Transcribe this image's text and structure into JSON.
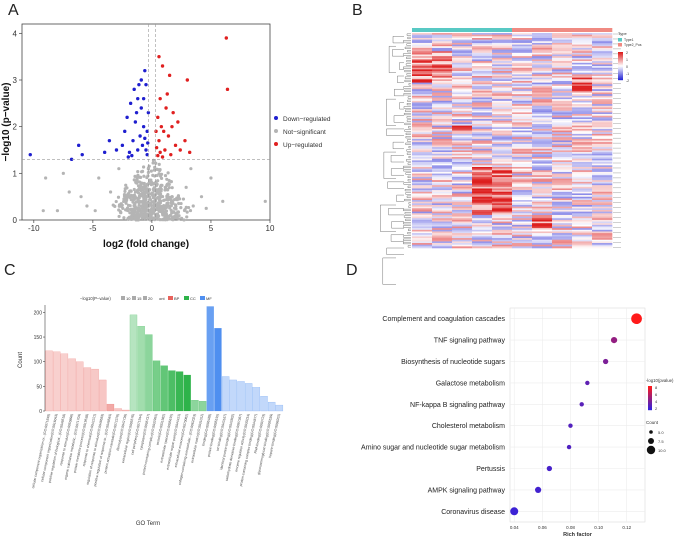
{
  "panels": {
    "a": "A",
    "b": "B",
    "c": "C",
    "d": "D"
  },
  "chart_data": [
    {
      "type": "scatter",
      "panel": "A",
      "xlabel": "log2 (fold change)",
      "ylabel": "−log10 (p−value)",
      "xlim": [
        -11,
        10
      ],
      "ylim": [
        0,
        4.2
      ],
      "xticks": [
        "-10",
        "-5",
        "0",
        "5",
        "10"
      ],
      "yticks": [
        "0",
        "1",
        "2",
        "3",
        "4"
      ],
      "threshold_y": 1.3,
      "threshold_x": [
        -0.3,
        0.3
      ],
      "legend": [
        {
          "label": "Down−regulated",
          "color": "#1f1fcf"
        },
        {
          "label": "Not−significant",
          "color": "#b4b4b4"
        },
        {
          "label": "Up−regulated",
          "color": "#e02020"
        }
      ],
      "down_points": [
        [
          -0.6,
          3.2
        ],
        [
          -1.2,
          2.6
        ],
        [
          -0.9,
          2.4
        ],
        [
          -1.8,
          2.5
        ],
        [
          -0.5,
          2.9
        ],
        [
          -1.4,
          2.1
        ],
        [
          -0.7,
          2.0
        ],
        [
          -2.1,
          2.2
        ],
        [
          -1.0,
          1.8
        ],
        [
          -0.4,
          1.9
        ],
        [
          -1.6,
          1.7
        ],
        [
          -2.5,
          1.6
        ],
        [
          -0.8,
          1.6
        ],
        [
          -1.2,
          1.5
        ],
        [
          -0.5,
          1.5
        ],
        [
          -1.9,
          1.45
        ],
        [
          -3.0,
          1.5
        ],
        [
          -0.6,
          1.75
        ],
        [
          -1.1,
          2.9
        ],
        [
          -0.3,
          2.3
        ],
        [
          -0.9,
          3.0
        ],
        [
          -1.5,
          2.8
        ],
        [
          -2.3,
          1.9
        ],
        [
          -0.4,
          1.4
        ],
        [
          -1.7,
          1.38
        ],
        [
          -6.2,
          1.6
        ],
        [
          -5.9,
          1.4
        ],
        [
          -6.8,
          1.3
        ],
        [
          -10.3,
          1.4
        ],
        [
          -3.6,
          1.7
        ],
        [
          -4.0,
          1.45
        ],
        [
          -1.3,
          2.3
        ],
        [
          -0.7,
          2.6
        ],
        [
          -2.0,
          1.35
        ],
        [
          -0.35,
          1.65
        ]
      ],
      "up_points": [
        [
          6.3,
          3.9
        ],
        [
          6.4,
          2.8
        ],
        [
          0.9,
          3.3
        ],
        [
          1.5,
          3.1
        ],
        [
          0.7,
          2.6
        ],
        [
          1.2,
          2.4
        ],
        [
          0.5,
          2.2
        ],
        [
          0.8,
          2.0
        ],
        [
          1.8,
          2.3
        ],
        [
          1.0,
          1.9
        ],
        [
          0.6,
          1.7
        ],
        [
          1.4,
          1.8
        ],
        [
          0.4,
          1.55
        ],
        [
          1.1,
          1.5
        ],
        [
          2.0,
          1.6
        ],
        [
          0.7,
          1.45
        ],
        [
          1.6,
          1.4
        ],
        [
          2.4,
          1.5
        ],
        [
          0.5,
          1.38
        ],
        [
          3.2,
          1.45
        ],
        [
          1.3,
          2.7
        ],
        [
          0.9,
          1.35
        ],
        [
          2.8,
          1.7
        ],
        [
          1.7,
          2.0
        ],
        [
          0.35,
          1.9
        ],
        [
          3.0,
          3.0
        ],
        [
          2.2,
          2.1
        ],
        [
          0.6,
          3.5
        ]
      ],
      "ns_points": [
        [
          -8.0,
          0.2
        ],
        [
          -6.0,
          0.5
        ],
        [
          -4.5,
          0.9
        ],
        [
          -5.5,
          0.3
        ],
        [
          -3.5,
          0.6
        ],
        [
          -7.0,
          0.6
        ],
        [
          -2.8,
          1.1
        ],
        [
          -2.6,
          0.35
        ],
        [
          -4.8,
          0.2
        ],
        [
          -9.0,
          0.9
        ],
        [
          3.5,
          0.3
        ],
        [
          4.2,
          0.5
        ],
        [
          5.0,
          0.9
        ],
        [
          3.3,
          1.1
        ],
        [
          6.0,
          0.4
        ],
        [
          9.6,
          0.4
        ],
        [
          4.6,
          0.25
        ],
        [
          2.9,
          0.7
        ],
        [
          -7.5,
          1.0
        ],
        [
          -9.2,
          0.2
        ]
      ]
    },
    {
      "type": "heatmap",
      "panel": "B",
      "columns": 10,
      "column_groups": [
        "group1",
        "group1",
        "group1",
        "group1",
        "group1",
        "group2",
        "group2",
        "group2",
        "group2",
        "group2"
      ],
      "group_colors": [
        "#58c9c4",
        "#f08a82"
      ],
      "legend_title": "Type",
      "legend_items": [
        "Type1",
        "Type2_Pos"
      ],
      "color_scale": {
        "min": -2,
        "max": 2,
        "low": "#2a2ad6",
        "mid": "#ffffff",
        "high": "#dd1f1f",
        "ticks": [
          "2",
          "1",
          "0",
          "-1",
          "-2"
        ]
      }
    },
    {
      "type": "bar",
      "panel": "C",
      "title": "−log10(P−value)",
      "xlabel": "GO Term",
      "ylabel": "Count",
      "ylim": [
        0,
        215
      ],
      "yticks": [
        "0",
        "50",
        "100",
        "150",
        "200"
      ],
      "size_legend": [
        "10",
        "15",
        "20"
      ],
      "ont_legend_title": "ont",
      "ont_legend": [
        {
          "label": "BP",
          "color": "#e8625c"
        },
        {
          "label": "CC",
          "color": "#2eb34a"
        },
        {
          "label": "MF",
          "color": "#4f8ff0"
        }
      ],
      "categories": [
        {
          "term": "cellular component organization or...(GO:0071840)",
          "count": 122,
          "ont": "BP",
          "alpha": 0.3
        },
        {
          "term": "cellular component organization(GO:0016043)",
          "count": 120,
          "ont": "BP",
          "alpha": 0.3
        },
        {
          "term": "positive regulation of biological...(GO:0048518)",
          "count": 116,
          "ont": "BP",
          "alpha": 0.3
        },
        {
          "term": "response to stimulus(GO:0050896)",
          "count": 106,
          "ont": "BP",
          "alpha": 0.32
        },
        {
          "term": "organic substance metabolic...(GO:0071704)",
          "count": 100,
          "ont": "BP",
          "alpha": 0.32
        },
        {
          "term": "protein metabolic process(GO:0019538)",
          "count": 88,
          "ont": "BP",
          "alpha": 0.34
        },
        {
          "term": "response to chemical(GO:0042221)",
          "count": 85,
          "ont": "BP",
          "alpha": 0.34
        },
        {
          "term": "regulation of response to stimulus(GO:0048583)",
          "count": 63,
          "ont": "BP",
          "alpha": 0.36
        },
        {
          "term": "positive regulation of response to...(GO:0048584)",
          "count": 14,
          "ont": "BP",
          "alpha": 0.55
        },
        {
          "term": "protein activation cascade(GO:0072376)",
          "count": 5,
          "ont": "BP",
          "alpha": 0.35
        },
        {
          "term": "fibrinolysis(GO:0042730)",
          "count": 2,
          "ont": "BP",
          "alpha": 0.35
        },
        {
          "term": "extracellular region(GO:0005576)",
          "count": 195,
          "ont": "CC",
          "alpha": 0.35
        },
        {
          "term": "cell periphery(GO:0071944)",
          "count": 172,
          "ont": "CC",
          "alpha": 0.45
        },
        {
          "term": "cytoplasm(GO:0005737)",
          "count": 155,
          "ont": "CC",
          "alpha": 0.55
        },
        {
          "term": "protein-containing complex(GO:0032991)",
          "count": 102,
          "ont": "CC",
          "alpha": 0.65
        },
        {
          "term": "vesicle(GO:0031982)",
          "count": 92,
          "ont": "CC",
          "alpha": 0.75
        },
        {
          "term": "extracellular space(GO:0005615)",
          "count": 82,
          "ont": "CC",
          "alpha": 0.85
        },
        {
          "term": "extracellular region part(GO:0044421)",
          "count": 80,
          "ont": "CC",
          "alpha": 0.95
        },
        {
          "term": "extracellular exosome(GO:0070062)",
          "count": 73,
          "ont": "CC",
          "alpha": 1.0
        },
        {
          "term": "collagen-containing extracellular...(GO:0062023)",
          "count": 22,
          "ont": "CC",
          "alpha": 0.55
        },
        {
          "term": "extracellular matrix(GO:0031012)",
          "count": 20,
          "ont": "CC",
          "alpha": 0.55
        },
        {
          "term": "binding(GO:0005488)",
          "count": 212,
          "ont": "MF",
          "alpha": 0.85
        },
        {
          "term": "protein binding(GO:0005515)",
          "count": 168,
          "ont": "MF",
          "alpha": 1.0
        },
        {
          "term": "ion binding(GO:0043167)",
          "count": 70,
          "ont": "MF",
          "alpha": 0.35
        },
        {
          "term": "identical protein binding(GO:0042802)",
          "count": 63,
          "ont": "MF",
          "alpha": 0.35
        },
        {
          "term": "carbohydrate derivative binding(GO:0097367)",
          "count": 60,
          "ont": "MF",
          "alpha": 0.35
        },
        {
          "term": "enzyme regulator activity(GO:0030234)",
          "count": 56,
          "ont": "MF",
          "alpha": 0.35
        },
        {
          "term": "protein-containing complex binding(GO:0044877)",
          "count": 48,
          "ont": "MF",
          "alpha": 0.35
        },
        {
          "term": "RNA binding(GO:0003723)",
          "count": 30,
          "ont": "MF",
          "alpha": 0.35
        },
        {
          "term": "glycosaminoglycan binding(GO:0005539)",
          "count": 18,
          "ont": "MF",
          "alpha": 0.35
        },
        {
          "term": "heparin binding(GO:0008201)",
          "count": 12,
          "ont": "MF",
          "alpha": 0.35
        }
      ]
    },
    {
      "type": "scatter",
      "panel": "D",
      "subtype": "dot",
      "xlabel": "Rich factor",
      "xlim": [
        0.037,
        0.133
      ],
      "xticks": [
        "0.04",
        "0.06",
        "0.08",
        "0.10",
        "0.12"
      ],
      "color_legend_title": "-log10(pvalue)",
      "color_legend_ticks": [
        "8",
        "6",
        "4",
        "2"
      ],
      "size_legend_title": "Count",
      "size_legend": [
        "5.0",
        "7.5",
        "10.0"
      ],
      "points": [
        {
          "pathway": "Complement and coagulation cascades",
          "rich": 0.127,
          "count": 11,
          "logp": 8.5
        },
        {
          "pathway": "TNF signaling pathway",
          "rich": 0.111,
          "count": 6,
          "logp": 4.8
        },
        {
          "pathway": "Biosynthesis of nucleotide sugars",
          "rich": 0.105,
          "count": 5,
          "logp": 4.0
        },
        {
          "pathway": "Galactose metabolism",
          "rich": 0.092,
          "count": 4,
          "logp": 3.0
        },
        {
          "pathway": "NF-kappa B signaling pathway",
          "rich": 0.088,
          "count": 4,
          "logp": 2.8
        },
        {
          "pathway": "Cholesterol metabolism",
          "rich": 0.08,
          "count": 4,
          "logp": 2.6
        },
        {
          "pathway": "Amino sugar and nucleotide sugar metabolism",
          "rich": 0.079,
          "count": 4,
          "logp": 2.5
        },
        {
          "pathway": "Pertussis",
          "rich": 0.065,
          "count": 5,
          "logp": 2.2
        },
        {
          "pathway": "AMPK signaling pathway",
          "rich": 0.057,
          "count": 6,
          "logp": 2.0
        },
        {
          "pathway": "Coronavirus disease",
          "rich": 0.04,
          "count": 8,
          "logp": 1.8
        }
      ]
    }
  ]
}
